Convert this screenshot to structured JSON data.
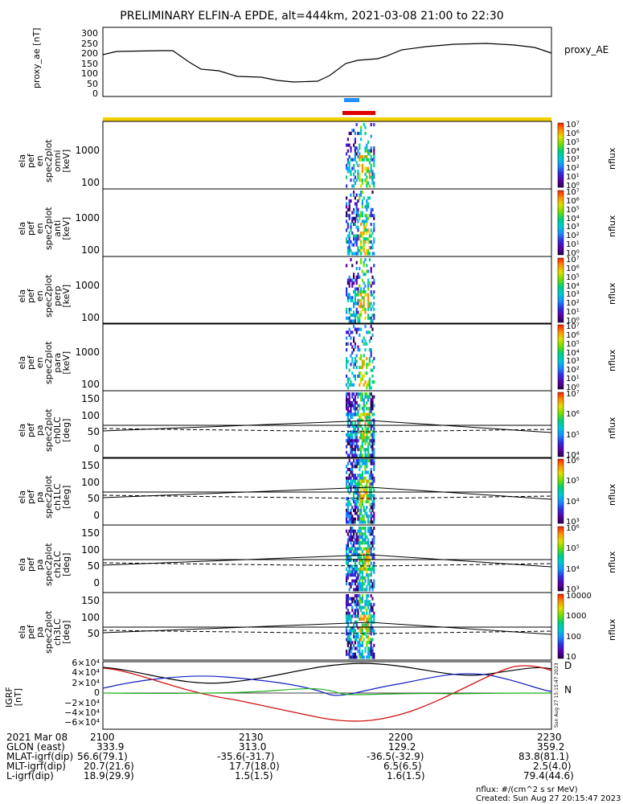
{
  "title": "PRELIMINARY ELFIN-A EPDE, alt=444km, 2021-03-08 21:00 to 22:30",
  "panels": [
    {
      "id": "proxy_ae",
      "ylabel": [
        "proxy_ae",
        "[nT]"
      ],
      "ticks": [
        "300",
        "250",
        "200",
        "150",
        "100",
        "50",
        "0"
      ],
      "right_label": "proxy_AE"
    },
    {
      "id": "omni",
      "ylabel": [
        "ela",
        "pef",
        "en",
        "spec2plot",
        "omni",
        "[keV]"
      ],
      "ticks": [
        "1000",
        "100"
      ],
      "cbar_label": "nflux",
      "cbar_ticks": [
        "10⁷",
        "10⁶",
        "10⁵",
        "10⁴",
        "10³",
        "10²",
        "10¹",
        "10⁰"
      ]
    },
    {
      "id": "anti",
      "ylabel": [
        "ela",
        "pef",
        "en",
        "spec2plot",
        "anti",
        "[keV]"
      ],
      "ticks": [
        "1000",
        "100"
      ],
      "cbar_label": "nflux",
      "cbar_ticks": [
        "10⁷",
        "10⁶",
        "10⁵",
        "10⁴",
        "10³",
        "10²",
        "10¹",
        "10⁰"
      ]
    },
    {
      "id": "perp",
      "ylabel": [
        "ela",
        "pef",
        "en",
        "spec2plot",
        "perp",
        "[keV]"
      ],
      "ticks": [
        "1000",
        "100"
      ],
      "cbar_label": "nflux",
      "cbar_ticks": [
        "10⁷",
        "10⁶",
        "10⁵",
        "10⁴",
        "10³",
        "10²",
        "10¹",
        "10⁰"
      ]
    },
    {
      "id": "para",
      "ylabel": [
        "ela",
        "pef",
        "en",
        "spec2plot",
        "para",
        "[keV]"
      ],
      "ticks": [
        "1000",
        "100"
      ],
      "cbar_label": "nflux",
      "cbar_ticks": [
        "10⁷",
        "10⁶",
        "10⁵",
        "10⁴",
        "10³",
        "10²",
        "10¹",
        "10⁰"
      ]
    },
    {
      "id": "ch0LC",
      "ylabel": [
        "ela",
        "pef",
        "pa",
        "spec2plot",
        "ch0LC",
        "[deg]"
      ],
      "ticks": [
        "150",
        "100",
        "50",
        "0"
      ],
      "cbar_label": "nflux",
      "cbar_ticks": [
        "10⁷",
        "10⁶",
        "10⁵",
        "10⁴"
      ]
    },
    {
      "id": "ch1LC",
      "ylabel": [
        "ela",
        "pef",
        "pa",
        "spec2plot",
        "ch1LC",
        "[deg]"
      ],
      "ticks": [
        "150",
        "100",
        "50",
        "0"
      ],
      "cbar_label": "nflux",
      "cbar_ticks": [
        "10⁶",
        "10⁵",
        "10⁴",
        "10³"
      ]
    },
    {
      "id": "ch2LC",
      "ylabel": [
        "ela",
        "pef",
        "pa",
        "spec2plot",
        "ch2LC",
        "[deg]"
      ],
      "ticks": [
        "150",
        "100",
        "50",
        "0"
      ],
      "cbar_label": "nflux",
      "cbar_ticks": [
        "10⁶",
        "10⁵",
        "10⁴",
        "10³"
      ]
    },
    {
      "id": "ch3LC",
      "ylabel": [
        "ela",
        "pef",
        "pa",
        "spec2plot",
        "ch3LC",
        "[deg]"
      ],
      "ticks": [
        "150",
        "100",
        "50"
      ],
      "cbar_label": "nflux",
      "cbar_ticks": [
        "10000",
        "1000",
        "100",
        "10"
      ]
    },
    {
      "id": "igrf",
      "ylabel": [
        "IGRF",
        "[nT]"
      ],
      "ticks": [
        "6×10⁴",
        "4×10⁴",
        "2×10⁴",
        "0",
        "−2×10⁴",
        "−4×10⁴",
        "−6×10⁴"
      ],
      "legend": [
        "D",
        "N"
      ]
    }
  ],
  "footer": {
    "rows": [
      [
        "2021 Mar 08",
        "2100",
        "2130",
        "2200",
        "2230"
      ],
      [
        "GLON (east)",
        "333.9",
        "313.0",
        "129.2",
        "359.2"
      ],
      [
        "MLAT-igrf(dip)",
        "56.6(79.1)",
        "-35.6(-31.7)",
        "-36.5(-32.9)",
        "83.8(81.1)"
      ],
      [
        "MLT-igrf(dip)",
        "20.7(21.6)",
        "17.7(18.0)",
        "6.5(6.5)",
        "2.5(4.0)"
      ],
      [
        "L-igrf(dip)",
        "18.9(29.9)",
        "1.5(1.5)",
        "1.6(1.5)",
        "79.4(44.6)"
      ]
    ],
    "units_note": "nflux: #/(cm^2 s sr MeV)",
    "created": "Created: Sun Aug 27 20:15:47 2023",
    "vertical_stamp": "Sun Aug 27 15:15:47 2023"
  },
  "colors": {
    "blue_bar": "#1e90ff",
    "red_bar": "#e00000",
    "yellow_bar": "#f0d000",
    "b_black": "#000000",
    "b_blue": "#1020c0",
    "b_red": "#d01010",
    "b_green": "#20b020"
  },
  "chart_data": [
    {
      "type": "line",
      "title": "",
      "ylabel": "proxy_ae [nT]",
      "ylim": [
        0,
        300
      ],
      "x": [
        "2100",
        "2110",
        "2120",
        "2130",
        "2140",
        "2150",
        "2200",
        "2210",
        "2220",
        "2230"
      ],
      "series": [
        {
          "name": "proxy_AE",
          "values": [
            190,
            200,
            110,
            80,
            60,
            60,
            150,
            210,
            230,
            195
          ]
        }
      ]
    },
    {
      "type": "heatmap",
      "title": "",
      "ylabel": "energy [keV]",
      "ylim": [
        60,
        6000
      ],
      "x_active": [
        "2152",
        "2157"
      ]
    },
    {
      "type": "heatmap",
      "title": "",
      "ylabel": "pitch angle [deg]",
      "ylim": [
        0,
        180
      ],
      "x_active": [
        "2152",
        "2157"
      ]
    },
    {
      "type": "line",
      "title": "",
      "ylabel": "IGRF [nT]",
      "ylim": [
        -60000,
        60000
      ],
      "series": [
        {
          "name": "D",
          "values": [
            45000,
            5000,
            -30000,
            -58000,
            -25000,
            45000,
            45000
          ]
        },
        {
          "name": "N",
          "values": [
            0,
            2000,
            1000,
            0,
            -1000,
            2000,
            0
          ]
        }
      ]
    }
  ]
}
